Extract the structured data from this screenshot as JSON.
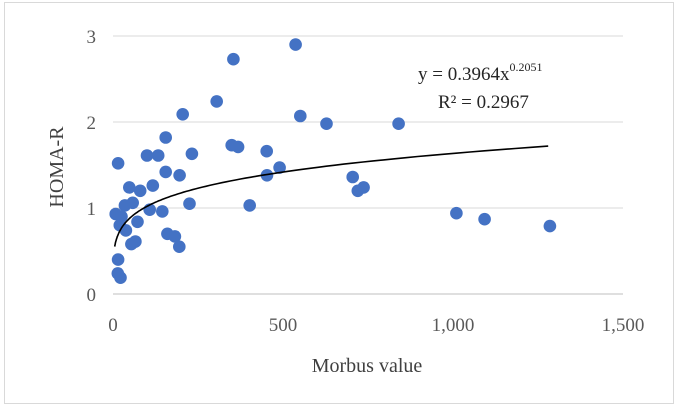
{
  "chart_data": {
    "type": "scatter",
    "title": "",
    "xlabel": "Morbus value",
    "ylabel": "HOMA-R",
    "xlim": [
      0,
      1500
    ],
    "ylim": [
      0,
      3
    ],
    "x_ticks": [
      0,
      500,
      1000,
      1500
    ],
    "x_tick_labels": [
      "0",
      "500",
      "1,000",
      "1,500"
    ],
    "y_ticks": [
      0,
      1,
      2,
      3
    ],
    "y_tick_labels": [
      "0",
      "1",
      "2",
      "3"
    ],
    "grid": "horizontal",
    "legend": "none",
    "marker_color": "#4472c4",
    "trendline": {
      "type": "power",
      "a": 0.3964,
      "b": 0.2051,
      "x_range": [
        5,
        1280
      ],
      "color": "#000000",
      "equation_prefix": "y = 0.3964x",
      "equation_exponent": "0.2051",
      "r2_label": "R² = 0.2967"
    },
    "points": [
      {
        "x": 537,
        "y": 2.9
      },
      {
        "x": 354,
        "y": 2.73
      },
      {
        "x": 305,
        "y": 2.24
      },
      {
        "x": 205,
        "y": 2.09
      },
      {
        "x": 551,
        "y": 2.07
      },
      {
        "x": 628,
        "y": 1.98
      },
      {
        "x": 840,
        "y": 1.98
      },
      {
        "x": 155,
        "y": 1.82
      },
      {
        "x": 349,
        "y": 1.73
      },
      {
        "x": 368,
        "y": 1.71
      },
      {
        "x": 452,
        "y": 1.66
      },
      {
        "x": 232,
        "y": 1.63
      },
      {
        "x": 100,
        "y": 1.61
      },
      {
        "x": 133,
        "y": 1.61
      },
      {
        "x": 15,
        "y": 1.52
      },
      {
        "x": 490,
        "y": 1.47
      },
      {
        "x": 155,
        "y": 1.42
      },
      {
        "x": 196,
        "y": 1.38
      },
      {
        "x": 453,
        "y": 1.38
      },
      {
        "x": 705,
        "y": 1.36
      },
      {
        "x": 720,
        "y": 1.2
      },
      {
        "x": 737,
        "y": 1.24
      },
      {
        "x": 117,
        "y": 1.26
      },
      {
        "x": 48,
        "y": 1.24
      },
      {
        "x": 80,
        "y": 1.2
      },
      {
        "x": 58,
        "y": 1.06
      },
      {
        "x": 225,
        "y": 1.05
      },
      {
        "x": 402,
        "y": 1.03
      },
      {
        "x": 35,
        "y": 1.03
      },
      {
        "x": 108,
        "y": 0.98
      },
      {
        "x": 145,
        "y": 0.96
      },
      {
        "x": 1010,
        "y": 0.94
      },
      {
        "x": 8,
        "y": 0.93
      },
      {
        "x": 25,
        "y": 0.9
      },
      {
        "x": 1093,
        "y": 0.87
      },
      {
        "x": 72,
        "y": 0.84
      },
      {
        "x": 20,
        "y": 0.8
      },
      {
        "x": 1285,
        "y": 0.79
      },
      {
        "x": 38,
        "y": 0.74
      },
      {
        "x": 160,
        "y": 0.7
      },
      {
        "x": 182,
        "y": 0.67
      },
      {
        "x": 66,
        "y": 0.61
      },
      {
        "x": 54,
        "y": 0.58
      },
      {
        "x": 195,
        "y": 0.55
      },
      {
        "x": 15,
        "y": 0.4
      },
      {
        "x": 14,
        "y": 0.24
      },
      {
        "x": 22,
        "y": 0.19
      }
    ]
  }
}
